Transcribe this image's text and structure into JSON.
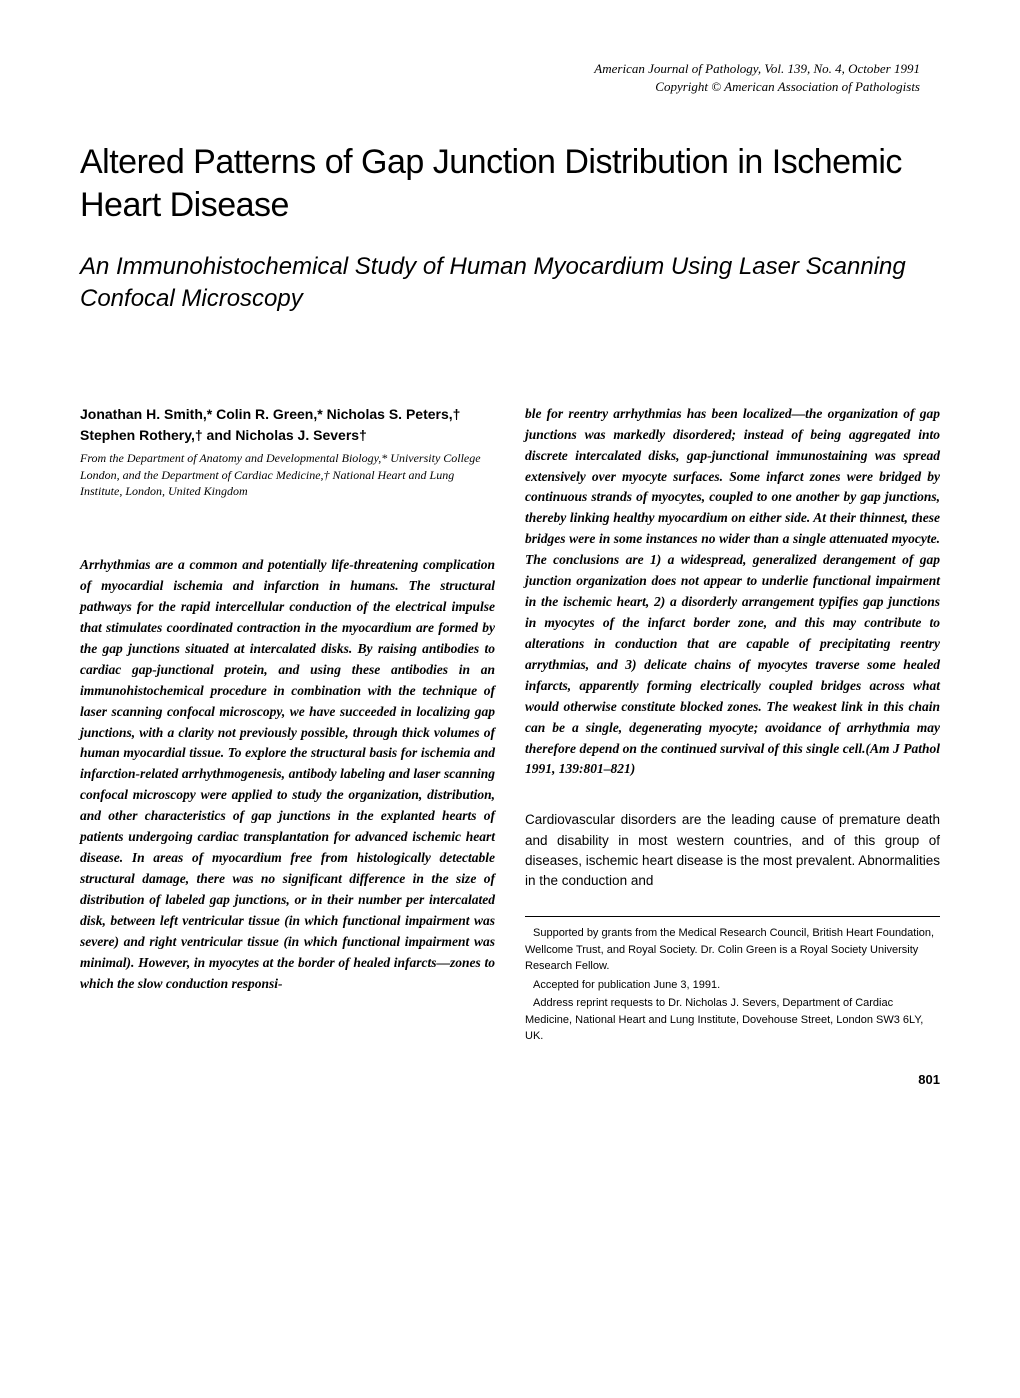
{
  "journal": {
    "line1": "American Journal of Pathology, Vol. 139, No. 4, October 1991",
    "line2": "Copyright © American Association of Pathologists"
  },
  "title": "Altered Patterns of Gap Junction Distribution in Ischemic Heart Disease",
  "subtitle": "An Immunohistochemical Study of Human Myocardium Using Laser Scanning Confocal Microscopy",
  "authors": "Jonathan H. Smith,* Colin R. Green,* Nicholas S. Peters,† Stephen Rothery,† and Nicholas J. Severs†",
  "affiliation": "From the Department of Anatomy and Developmental Biology,* University College London, and the Department of Cardiac Medicine,† National Heart and Lung Institute, London, United Kingdom",
  "abstract_left": "Arrhythmias are a common and potentially life-threatening complication of myocardial ischemia and infarction in humans. The structural pathways for the rapid intercellular conduction of the electrical impulse that stimulates coordinated contraction in the myocardium are formed by the gap junctions situated at intercalated disks. By raising antibodies to cardiac gap-junctional protein, and using these antibodies in an immunohistochemical procedure in combination with the technique of laser scanning confocal microscopy, we have succeeded in localizing gap junctions, with a clarity not previously possible, through thick volumes of human myocardial tissue. To explore the structural basis for ischemia and infarction-related arrhythmogenesis, antibody labeling and laser scanning confocal microscopy were applied to study the organization, distribution, and other characteristics of gap junctions in the explanted hearts of patients undergoing cardiac transplantation for advanced ischemic heart disease. In areas of myocardium free from histologically detectable structural damage, there was no significant difference in the size of distribution of labeled gap junctions, or in their number per intercalated disk, between left ventricular tissue (in which functional impairment was severe) and right ventricular tissue (in which functional impairment was minimal). However, in myocytes at the border of healed infarcts—zones to which the slow conduction responsi-",
  "abstract_right": "ble for reentry arrhythmias has been localized—the organization of gap junctions was markedly disordered; instead of being aggregated into discrete intercalated disks, gap-junctional immunostaining was spread extensively over myocyte surfaces. Some infarct zones were bridged by continuous strands of myocytes, coupled to one another by gap junctions, thereby linking healthy myocardium on either side. At their thinnest, these bridges were in some instances no wider than a single attenuated myocyte. The conclusions are 1) a widespread, generalized derangement of gap junction organization does not appear to underlie functional impairment in the ischemic heart, 2) a disorderly arrangement typifies gap junctions in myocytes of the infarct border zone, and this may contribute to alterations in conduction that are capable of precipitating reentry arrythmias, and 3) delicate chains of myocytes traverse some healed infarcts, apparently forming electrically coupled bridges across what would otherwise constitute blocked zones. The weakest link in this chain can be a single, degenerating myocyte; avoidance of arrhythmia may therefore depend on the continued survival of this single cell.(Am J Pathol 1991, 139:801–821)",
  "intro": "Cardiovascular disorders are the leading cause of premature death and disability in most western countries, and of this group of diseases, ischemic heart disease is the most prevalent. Abnormalities in the conduction and",
  "footer": {
    "support": "Supported by grants from the Medical Research Council, British Heart Foundation, Wellcome Trust, and Royal Society. Dr. Colin Green is a Royal Society University Research Fellow.",
    "accepted": "Accepted for publication June 3, 1991.",
    "reprint": "Address reprint requests to Dr. Nicholas J. Severs, Department of Cardiac Medicine, National Heart and Lung Institute, Dovehouse Street, London SW3 6LY, UK."
  },
  "page_number": "801"
}
